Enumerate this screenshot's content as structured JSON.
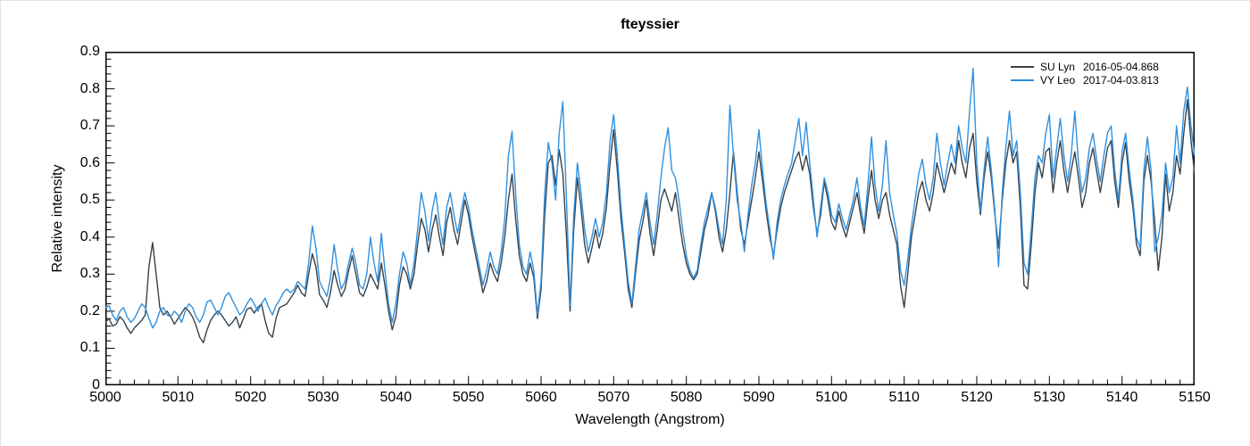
{
  "title": "fteyssier",
  "axes": {
    "x_label": "Wavelength (Angstrom)",
    "y_label": "Relative intensity",
    "x_ticks": [
      5000,
      5010,
      5020,
      5030,
      5040,
      5050,
      5060,
      5070,
      5080,
      5090,
      5100,
      5110,
      5120,
      5130,
      5140,
      5150
    ],
    "y_ticks": [
      "0",
      "0.1",
      "0.2",
      "0.3",
      "0.4",
      "0.5",
      "0.6",
      "0.7",
      "0.8",
      "0.9"
    ]
  },
  "legend": [
    {
      "name": "SU Lyn",
      "date": "2016-05-04.868",
      "color": "#36424b"
    },
    {
      "name": "VY Leo",
      "date": "2017-04-03.813",
      "color": "#3090e0"
    }
  ],
  "chart_data": {
    "type": "line",
    "title": "fteyssier",
    "xlabel": "Wavelength (Angstrom)",
    "ylabel": "Relative intensity",
    "xlim": [
      5000,
      5150
    ],
    "ylim": [
      0,
      0.9
    ],
    "x_major_tick": 10,
    "x_minor_tick": 2,
    "y_major_tick": 0.1,
    "y_minor_tick": 0.02,
    "grid": false,
    "legend_position": "top-right",
    "x_start": 5000,
    "x_step": 0.5,
    "series": [
      {
        "name": "SU Lyn",
        "date": "2016-05-04.868",
        "color": "#36424b",
        "values": [
          0.17,
          0.18,
          0.16,
          0.165,
          0.185,
          0.175,
          0.155,
          0.14,
          0.155,
          0.165,
          0.175,
          0.19,
          0.32,
          0.385,
          0.3,
          0.21,
          0.19,
          0.2,
          0.185,
          0.165,
          0.18,
          0.195,
          0.21,
          0.2,
          0.185,
          0.16,
          0.13,
          0.115,
          0.15,
          0.175,
          0.19,
          0.2,
          0.19,
          0.175,
          0.16,
          0.17,
          0.185,
          0.155,
          0.18,
          0.205,
          0.21,
          0.195,
          0.21,
          0.22,
          0.175,
          0.14,
          0.13,
          0.18,
          0.21,
          0.215,
          0.22,
          0.235,
          0.25,
          0.27,
          0.25,
          0.24,
          0.3,
          0.355,
          0.32,
          0.245,
          0.23,
          0.21,
          0.25,
          0.31,
          0.27,
          0.24,
          0.26,
          0.31,
          0.35,
          0.3,
          0.25,
          0.24,
          0.265,
          0.3,
          0.28,
          0.26,
          0.33,
          0.27,
          0.2,
          0.15,
          0.185,
          0.27,
          0.32,
          0.3,
          0.26,
          0.3,
          0.38,
          0.45,
          0.42,
          0.36,
          0.42,
          0.46,
          0.4,
          0.35,
          0.44,
          0.48,
          0.42,
          0.38,
          0.44,
          0.5,
          0.46,
          0.4,
          0.35,
          0.3,
          0.25,
          0.28,
          0.33,
          0.3,
          0.28,
          0.33,
          0.4,
          0.5,
          0.57,
          0.45,
          0.35,
          0.3,
          0.28,
          0.33,
          0.29,
          0.18,
          0.26,
          0.46,
          0.6,
          0.62,
          0.54,
          0.635,
          0.57,
          0.4,
          0.2,
          0.42,
          0.56,
          0.48,
          0.38,
          0.33,
          0.37,
          0.42,
          0.37,
          0.41,
          0.48,
          0.6,
          0.69,
          0.58,
          0.45,
          0.36,
          0.26,
          0.21,
          0.3,
          0.39,
          0.44,
          0.5,
          0.41,
          0.35,
          0.42,
          0.5,
          0.53,
          0.5,
          0.47,
          0.52,
          0.45,
          0.38,
          0.33,
          0.3,
          0.285,
          0.3,
          0.36,
          0.42,
          0.46,
          0.52,
          0.47,
          0.4,
          0.36,
          0.42,
          0.52,
          0.63,
          0.52,
          0.42,
          0.38,
          0.44,
          0.5,
          0.56,
          0.63,
          0.55,
          0.47,
          0.4,
          0.35,
          0.42,
          0.48,
          0.52,
          0.55,
          0.58,
          0.61,
          0.63,
          0.58,
          0.62,
          0.57,
          0.48,
          0.41,
          0.46,
          0.55,
          0.5,
          0.44,
          0.42,
          0.47,
          0.43,
          0.4,
          0.44,
          0.48,
          0.52,
          0.46,
          0.41,
          0.5,
          0.58,
          0.5,
          0.45,
          0.5,
          0.52,
          0.46,
          0.42,
          0.38,
          0.27,
          0.21,
          0.3,
          0.4,
          0.46,
          0.52,
          0.55,
          0.5,
          0.47,
          0.52,
          0.6,
          0.56,
          0.52,
          0.56,
          0.6,
          0.57,
          0.66,
          0.6,
          0.56,
          0.64,
          0.68,
          0.55,
          0.46,
          0.56,
          0.63,
          0.56,
          0.46,
          0.37,
          0.5,
          0.6,
          0.66,
          0.6,
          0.63,
          0.48,
          0.27,
          0.26,
          0.38,
          0.52,
          0.6,
          0.56,
          0.63,
          0.64,
          0.52,
          0.6,
          0.66,
          0.58,
          0.52,
          0.58,
          0.63,
          0.56,
          0.48,
          0.52,
          0.6,
          0.64,
          0.58,
          0.52,
          0.58,
          0.64,
          0.66,
          0.55,
          0.48,
          0.6,
          0.655,
          0.55,
          0.48,
          0.38,
          0.35,
          0.55,
          0.62,
          0.55,
          0.44,
          0.31,
          0.4,
          0.57,
          0.47,
          0.52,
          0.62,
          0.57,
          0.68,
          0.77,
          0.66,
          0.57
        ]
      },
      {
        "name": "VY Leo",
        "date": "2017-04-03.813",
        "color": "#3090e0",
        "values": [
          0.21,
          0.215,
          0.19,
          0.175,
          0.2,
          0.21,
          0.185,
          0.17,
          0.18,
          0.2,
          0.22,
          0.21,
          0.18,
          0.155,
          0.17,
          0.2,
          0.21,
          0.19,
          0.185,
          0.2,
          0.19,
          0.17,
          0.2,
          0.22,
          0.21,
          0.185,
          0.17,
          0.19,
          0.225,
          0.23,
          0.21,
          0.19,
          0.21,
          0.24,
          0.25,
          0.23,
          0.21,
          0.19,
          0.2,
          0.22,
          0.235,
          0.22,
          0.2,
          0.22,
          0.235,
          0.21,
          0.19,
          0.215,
          0.23,
          0.25,
          0.26,
          0.25,
          0.26,
          0.28,
          0.27,
          0.26,
          0.33,
          0.43,
          0.37,
          0.28,
          0.26,
          0.24,
          0.29,
          0.38,
          0.31,
          0.26,
          0.28,
          0.33,
          0.37,
          0.33,
          0.27,
          0.26,
          0.3,
          0.4,
          0.33,
          0.28,
          0.41,
          0.31,
          0.22,
          0.17,
          0.22,
          0.3,
          0.36,
          0.33,
          0.27,
          0.33,
          0.42,
          0.52,
          0.47,
          0.39,
          0.47,
          0.52,
          0.44,
          0.38,
          0.48,
          0.52,
          0.46,
          0.41,
          0.47,
          0.52,
          0.48,
          0.42,
          0.37,
          0.32,
          0.27,
          0.31,
          0.36,
          0.32,
          0.3,
          0.36,
          0.45,
          0.62,
          0.685,
          0.52,
          0.38,
          0.32,
          0.3,
          0.36,
          0.31,
          0.19,
          0.28,
          0.52,
          0.655,
          0.6,
          0.5,
          0.68,
          0.765,
          0.5,
          0.215,
          0.46,
          0.6,
          0.52,
          0.42,
          0.36,
          0.4,
          0.45,
          0.4,
          0.44,
          0.52,
          0.66,
          0.73,
          0.62,
          0.48,
          0.38,
          0.28,
          0.22,
          0.32,
          0.42,
          0.47,
          0.52,
          0.44,
          0.38,
          0.46,
          0.56,
          0.64,
          0.695,
          0.58,
          0.56,
          0.5,
          0.42,
          0.35,
          0.31,
          0.29,
          0.31,
          0.38,
          0.44,
          0.48,
          0.52,
          0.48,
          0.42,
          0.38,
          0.5,
          0.755,
          0.62,
          0.5,
          0.44,
          0.36,
          0.46,
          0.54,
          0.6,
          0.69,
          0.58,
          0.49,
          0.42,
          0.34,
          0.44,
          0.5,
          0.54,
          0.57,
          0.6,
          0.66,
          0.72,
          0.62,
          0.71,
          0.6,
          0.5,
          0.4,
          0.48,
          0.56,
          0.52,
          0.46,
          0.44,
          0.49,
          0.45,
          0.42,
          0.46,
          0.5,
          0.56,
          0.48,
          0.43,
          0.54,
          0.67,
          0.54,
          0.47,
          0.54,
          0.66,
          0.52,
          0.46,
          0.41,
          0.31,
          0.27,
          0.34,
          0.43,
          0.5,
          0.57,
          0.61,
          0.54,
          0.5,
          0.56,
          0.68,
          0.6,
          0.54,
          0.6,
          0.65,
          0.6,
          0.7,
          0.64,
          0.6,
          0.74,
          0.855,
          0.6,
          0.47,
          0.58,
          0.67,
          0.58,
          0.47,
          0.32,
          0.52,
          0.64,
          0.74,
          0.62,
          0.66,
          0.52,
          0.33,
          0.3,
          0.42,
          0.56,
          0.62,
          0.6,
          0.68,
          0.73,
          0.56,
          0.64,
          0.72,
          0.62,
          0.55,
          0.62,
          0.74,
          0.6,
          0.52,
          0.56,
          0.64,
          0.68,
          0.61,
          0.55,
          0.62,
          0.68,
          0.7,
          0.58,
          0.5,
          0.63,
          0.68,
          0.58,
          0.5,
          0.4,
          0.37,
          0.58,
          0.67,
          0.58,
          0.36,
          0.4,
          0.46,
          0.6,
          0.52,
          0.56,
          0.7,
          0.6,
          0.74,
          0.805,
          0.7,
          0.62
        ]
      }
    ]
  }
}
